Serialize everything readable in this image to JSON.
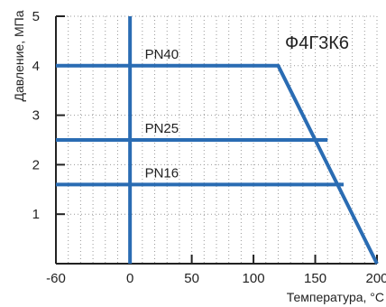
{
  "chart_data": {
    "type": "line",
    "title": "",
    "material_label": "Ф4Г3К6",
    "xlabel": "Температура, °C",
    "ylabel": "Давление, МПа",
    "xlim": [
      -60,
      200
    ],
    "ylim": [
      0,
      5
    ],
    "x_ticks": [
      -60,
      0,
      50,
      100,
      150,
      200
    ],
    "y_ticks": [
      1,
      2,
      3,
      4,
      5
    ],
    "grid": "dotted",
    "colors": {
      "series": "#2a6cb3",
      "grid": "#999999",
      "axis": "#222222"
    },
    "series": [
      {
        "name": "PN40",
        "points": [
          [
            -60,
            4.0
          ],
          [
            120,
            4.0
          ],
          [
            200,
            0.0
          ]
        ]
      },
      {
        "name": "PN25",
        "points": [
          [
            -60,
            2.5
          ],
          [
            160,
            2.5
          ]
        ]
      },
      {
        "name": "PN16",
        "points": [
          [
            -60,
            1.6
          ],
          [
            173,
            1.6
          ]
        ]
      }
    ],
    "vertical_line_x": 0
  }
}
